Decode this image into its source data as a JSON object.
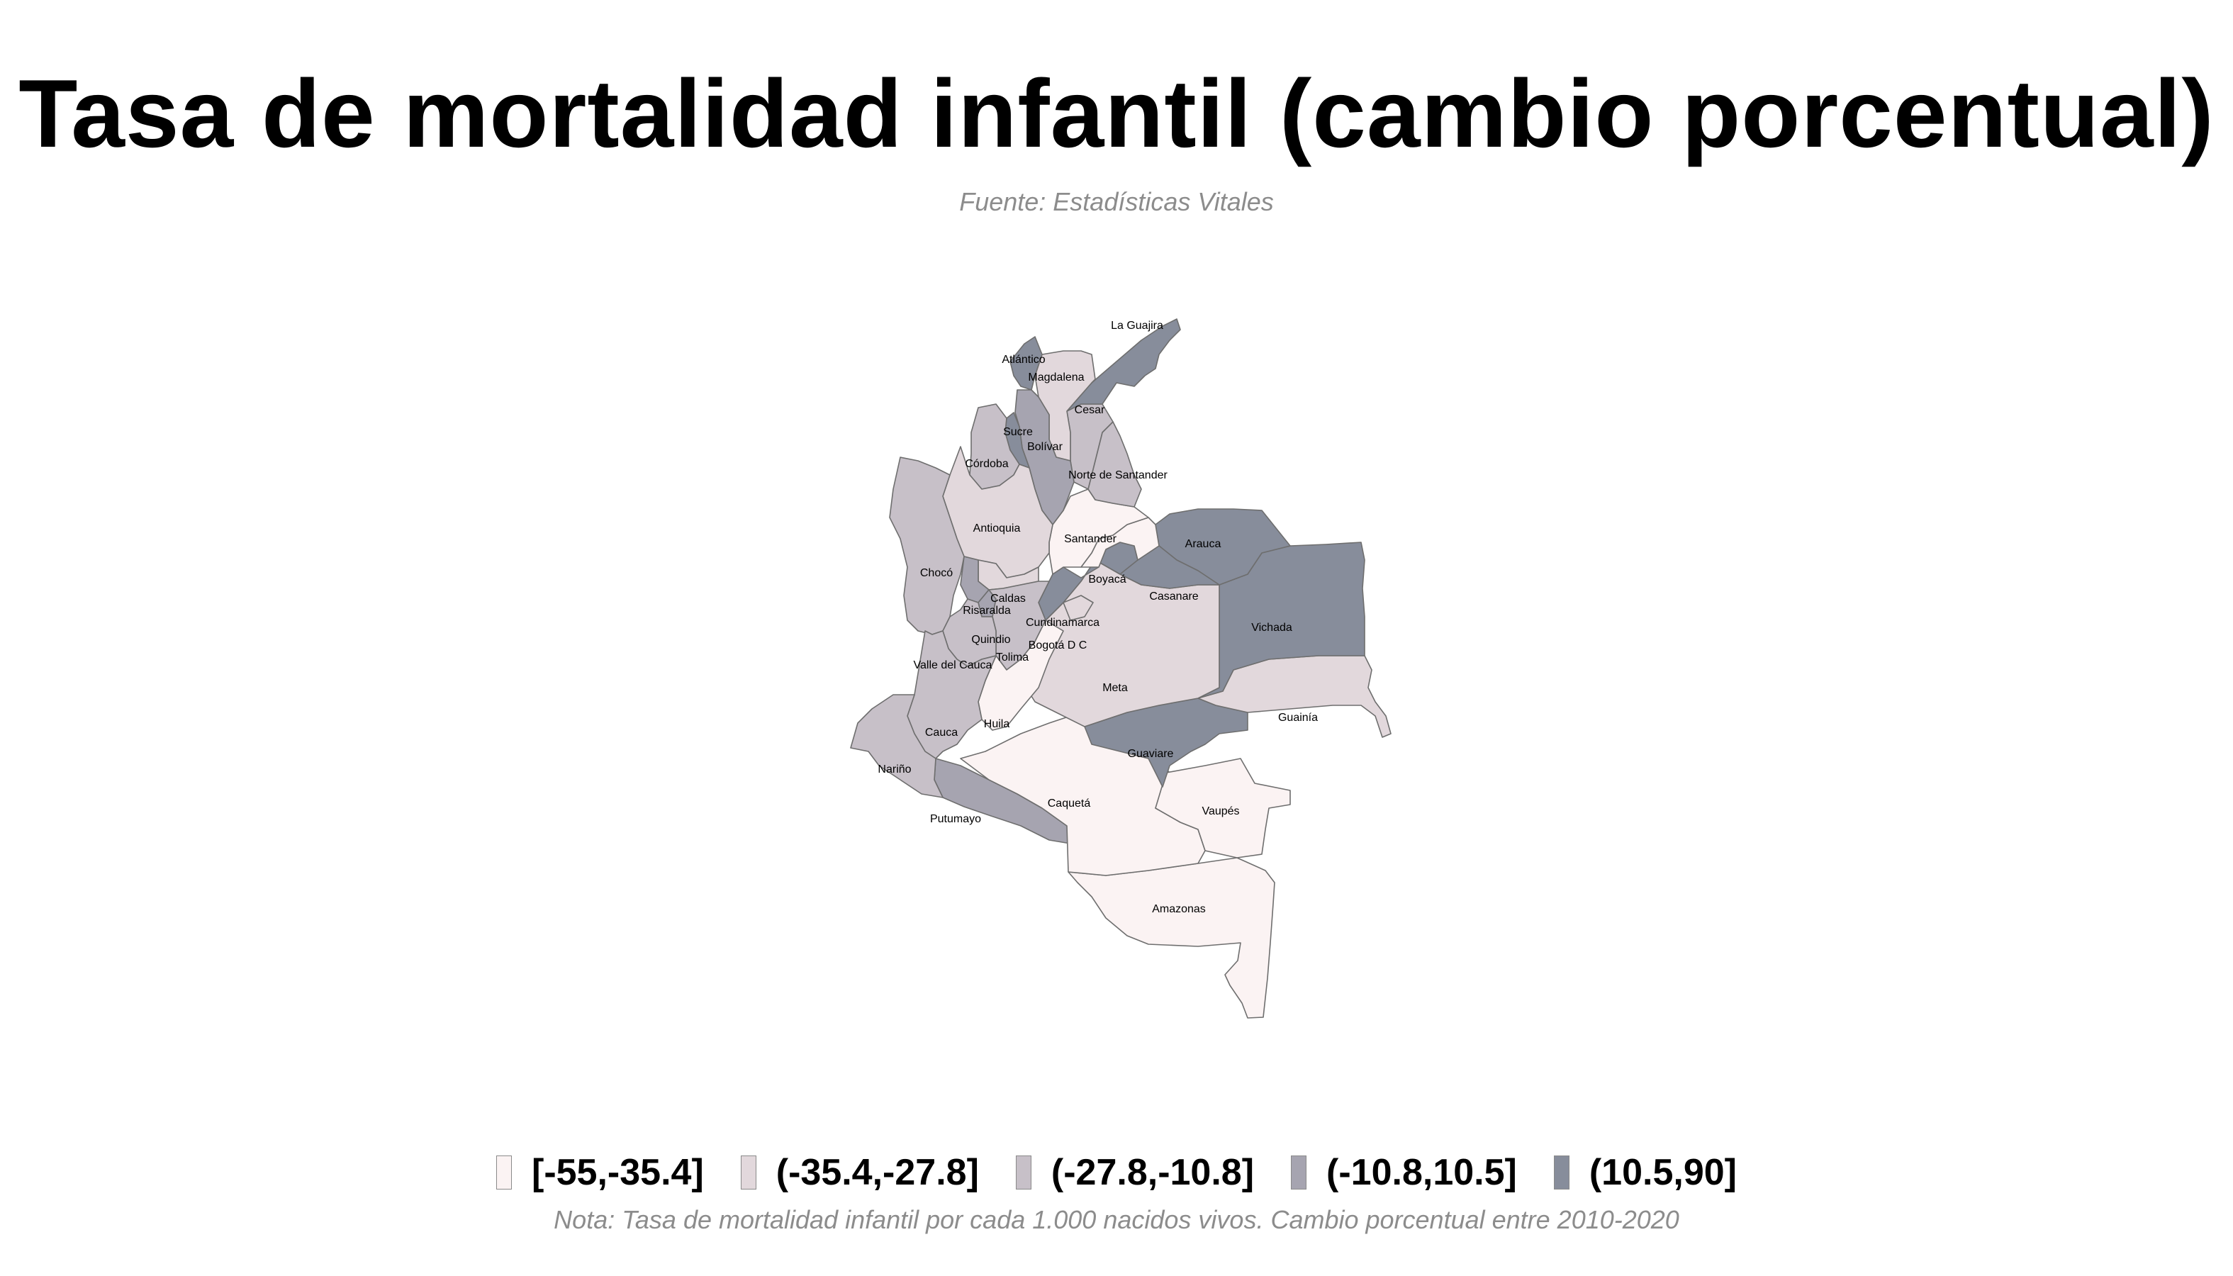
{
  "title": "Tasa de mortalidad infantil (cambio porcentual)",
  "subtitle": "Fuente: Estadísticas Vitales",
  "note": "Nota: Tasa de mortalidad infantil por cada 1.000 nacidos vivos. Cambio porcentual entre 2010-2020",
  "legend": [
    {
      "label": "[-55,-35.4]",
      "color": "#fbf3f3"
    },
    {
      "label": "(-35.4,-27.8]",
      "color": "#e2d8dc"
    },
    {
      "label": "(-27.8,-10.8]",
      "color": "#c7c0c8"
    },
    {
      "label": "(-10.8,10.5]",
      "color": "#a6a4b0"
    },
    {
      "label": "(10.5,90]",
      "color": "#878d9b"
    }
  ],
  "departments": [
    {
      "id": "la-guajira",
      "name": "La Guajira",
      "color": "#878d9b"
    },
    {
      "id": "atlantico",
      "name": "Atlántico",
      "color": "#878d9b"
    },
    {
      "id": "magdalena",
      "name": "Magdalena",
      "color": "#e2d8dc"
    },
    {
      "id": "cesar",
      "name": "Cesar",
      "color": "#c7c0c8"
    },
    {
      "id": "sucre",
      "name": "Sucre",
      "color": "#878d9b"
    },
    {
      "id": "bolivar",
      "name": "Bolívar",
      "color": "#a6a4b0"
    },
    {
      "id": "cordoba",
      "name": "Córdoba",
      "color": "#c7c0c8"
    },
    {
      "id": "norte-de-santander",
      "name": "Norte de Santander",
      "color": "#c7c0c8"
    },
    {
      "id": "antioquia",
      "name": "Antioquia",
      "color": "#e2d8dc"
    },
    {
      "id": "santander",
      "name": "Santander",
      "color": "#fbf3f3"
    },
    {
      "id": "arauca",
      "name": "Arauca",
      "color": "#878d9b"
    },
    {
      "id": "choco",
      "name": "Chocó",
      "color": "#c7c0c8"
    },
    {
      "id": "boyaca",
      "name": "Boyacá",
      "color": "#fbf3f3"
    },
    {
      "id": "caldas",
      "name": "Caldas",
      "color": "#e2d8dc"
    },
    {
      "id": "risaralda",
      "name": "Risaralda",
      "color": "#a6a4b0"
    },
    {
      "id": "casanare",
      "name": "Casanare",
      "color": "#878d9b"
    },
    {
      "id": "cundinamarca",
      "name": "Cundinamarca",
      "color": "#878d9b"
    },
    {
      "id": "vichada",
      "name": "Vichada",
      "color": "#878d9b"
    },
    {
      "id": "quindio",
      "name": "Quindio",
      "color": "#a6a4b0"
    },
    {
      "id": "bogota",
      "name": "Bogotá D C",
      "color": "#e2d8dc"
    },
    {
      "id": "tolima",
      "name": "Tolima",
      "color": "#c7c0c8"
    },
    {
      "id": "valle-del-cauca",
      "name": "Valle del Cauca",
      "color": "#c7c0c8"
    },
    {
      "id": "meta",
      "name": "Meta",
      "color": "#e2d8dc"
    },
    {
      "id": "guainia",
      "name": "Guainía",
      "color": "#e2d8dc"
    },
    {
      "id": "huila",
      "name": "Huila",
      "color": "#fbf3f3"
    },
    {
      "id": "cauca",
      "name": "Cauca",
      "color": "#c7c0c8"
    },
    {
      "id": "guaviare",
      "name": "Guaviare",
      "color": "#878d9b"
    },
    {
      "id": "narino",
      "name": "Nariño",
      "color": "#c7c0c8"
    },
    {
      "id": "caqueta",
      "name": "Caquetá",
      "color": "#fbf3f3"
    },
    {
      "id": "vaupes",
      "name": "Vaupés",
      "color": "#fbf3f3"
    },
    {
      "id": "putumayo",
      "name": "Putumayo",
      "color": "#a6a4b0"
    },
    {
      "id": "amazonas",
      "name": "Amazonas",
      "color": "#fbf3f3"
    }
  ]
}
